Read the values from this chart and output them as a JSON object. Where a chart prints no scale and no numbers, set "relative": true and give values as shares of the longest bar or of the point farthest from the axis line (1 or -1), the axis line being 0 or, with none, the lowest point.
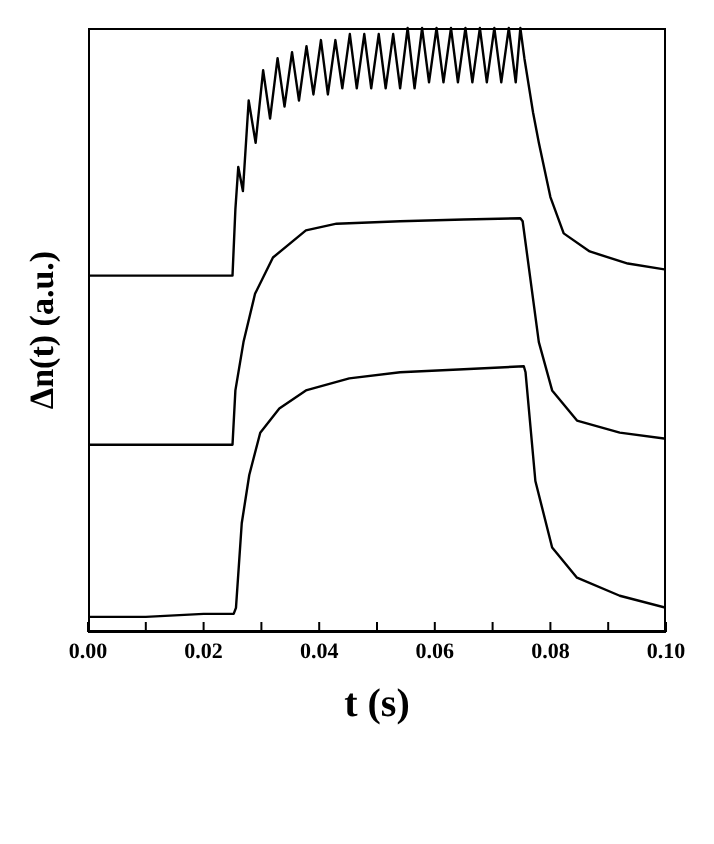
{
  "chart_data": {
    "type": "line",
    "relative": true,
    "xlabel": "t (s)",
    "ylabel": "Δn(t) (a.u.)",
    "xlim": [
      0,
      0.1
    ],
    "xticks": [
      {
        "value": 0,
        "label": "0.00"
      },
      {
        "value": 0.01,
        "label": null
      },
      {
        "value": 0.02,
        "label": "0.02"
      },
      {
        "value": 0.03,
        "label": null
      },
      {
        "value": 0.04,
        "label": "0.04"
      },
      {
        "value": 0.05,
        "label": null
      },
      {
        "value": 0.06,
        "label": "0.06"
      },
      {
        "value": 0.07,
        "label": null
      },
      {
        "value": 0.08,
        "label": "0.08"
      },
      {
        "value": 0.09,
        "label": null
      },
      {
        "value": 0.1,
        "label": "0.10"
      }
    ],
    "grid": false,
    "legend": false,
    "marker": "none",
    "line_style": "solid",
    "series": [
      {
        "color": "#000000",
        "x": [
          0,
          0.01,
          0.02,
          0.025,
          0.0255,
          0.026,
          0.0268,
          0.0278,
          0.029,
          0.0303,
          0.0315,
          0.0328,
          0.034,
          0.0353,
          0.0365,
          0.0378,
          0.039,
          0.0403,
          0.0415,
          0.0428,
          0.044,
          0.0453,
          0.0465,
          0.0478,
          0.049,
          0.0503,
          0.0515,
          0.0528,
          0.054,
          0.0553,
          0.0565,
          0.0578,
          0.059,
          0.0603,
          0.0615,
          0.0628,
          0.064,
          0.0653,
          0.0665,
          0.0678,
          0.069,
          0.0703,
          0.0715,
          0.0728,
          0.074,
          0.0748,
          0.0755,
          0.077,
          0.078,
          0.08,
          0.0823,
          0.0868,
          0.0934,
          0.1
        ],
        "values": [
          0.59,
          0.59,
          0.59,
          0.59,
          0.7,
          0.77,
          0.73,
          0.88,
          0.81,
          0.93,
          0.85,
          0.95,
          0.87,
          0.96,
          0.88,
          0.97,
          0.89,
          0.98,
          0.89,
          0.98,
          0.9,
          0.99,
          0.9,
          0.99,
          0.9,
          0.99,
          0.9,
          0.99,
          0.9,
          1,
          0.9,
          1,
          0.91,
          1,
          0.91,
          1,
          0.91,
          1,
          0.91,
          1,
          0.91,
          1,
          0.91,
          1,
          0.91,
          1,
          0.95,
          0.86,
          0.81,
          0.72,
          0.66,
          0.63,
          0.61,
          0.6
        ]
      },
      {
        "color": "#000000",
        "x": [
          0,
          0.01,
          0.02,
          0.025,
          0.0255,
          0.0269,
          0.0289,
          0.032,
          0.0377,
          0.043,
          0.054,
          0.065,
          0.0748,
          0.0752,
          0.078,
          0.0803,
          0.0846,
          0.092,
          0.1
        ],
        "values": [
          0.31,
          0.31,
          0.31,
          0.31,
          0.4,
          0.48,
          0.56,
          0.62,
          0.665,
          0.676,
          0.68,
          0.683,
          0.685,
          0.68,
          0.48,
          0.4,
          0.35,
          0.33,
          0.32
        ]
      },
      {
        "color": "#000000",
        "x": [
          0,
          0.01,
          0.02,
          0.0252,
          0.0256,
          0.0266,
          0.0279,
          0.0298,
          0.0331,
          0.0377,
          0.0452,
          0.054,
          0.065,
          0.0754,
          0.0757,
          0.0774,
          0.0803,
          0.0846,
          0.092,
          0.1
        ],
        "values": [
          0.025,
          0.025,
          0.03,
          0.03,
          0.04,
          0.18,
          0.26,
          0.33,
          0.37,
          0.4,
          0.42,
          0.43,
          0.435,
          0.44,
          0.43,
          0.25,
          0.14,
          0.09,
          0.06,
          0.04
        ]
      }
    ]
  }
}
